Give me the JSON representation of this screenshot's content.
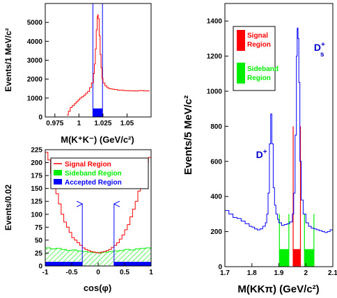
{
  "colors": {
    "signal": "#ff0000",
    "sideband": "#00ee00",
    "accepted": "#0000ff",
    "axis": "#000000",
    "dplus_label": "#0000cc"
  },
  "chart_data": [
    {
      "id": "mkk",
      "type": "line",
      "title": "",
      "xlabel": "M(K⁺K⁻) (GeV/c²)",
      "ylabel": "Events/1 MeV/c²",
      "xlim": [
        0.965,
        1.075
      ],
      "ylim": [
        0,
        6000
      ],
      "xticks": [
        0.975,
        1.0,
        1.025,
        1.05
      ],
      "xtick_labels": [
        "0.975",
        "1",
        "1.025",
        "1.05"
      ],
      "yticks": [
        0,
        1000,
        2000,
        3000,
        4000,
        5000
      ],
      "ytick_labels": [
        "0",
        "1000",
        "2000",
        "3000",
        "4000",
        "5000"
      ],
      "series": [
        {
          "color": "#ff0000",
          "x": [
            0.9875,
            0.989,
            0.991,
            0.993,
            0.995,
            0.997,
            0.999,
            1.001,
            1.003,
            1.005,
            1.007,
            1.009,
            1.011,
            1.013,
            1.015,
            1.016,
            1.017,
            1.018,
            1.019,
            1.0195,
            1.02,
            1.021,
            1.022,
            1.023,
            1.024,
            1.025,
            1.027,
            1.029,
            1.031,
            1.033,
            1.035,
            1.037,
            1.04,
            1.043,
            1.046,
            1.049,
            1.052,
            1.055,
            1.058,
            1.061,
            1.064,
            1.067,
            1.07,
            1.073
          ],
          "values": [
            100,
            300,
            500,
            600,
            700,
            800,
            900,
            1000,
            1070,
            1150,
            1250,
            1350,
            1550,
            1800,
            2300,
            2800,
            3600,
            4600,
            5300,
            5400,
            5200,
            4300,
            3300,
            2600,
            2050,
            1800,
            1650,
            1550,
            1500,
            1480,
            1470,
            1450,
            1420,
            1420,
            1400,
            1390,
            1380,
            1380,
            1370,
            1390,
            1400,
            1380,
            1380,
            1350
          ]
        }
      ],
      "accepted_region": {
        "x_range": [
          1.0145,
          1.0245
        ],
        "height": 450
      },
      "window_lines_x": [
        1.0145,
        1.0245
      ]
    },
    {
      "id": "cosphi",
      "type": "area",
      "title": "",
      "xlabel": "cos(φ)",
      "ylabel": "Events/0.02",
      "xlim": [
        -1,
        1
      ],
      "ylim": [
        0,
        225
      ],
      "xticks": [
        -1,
        -0.5,
        0,
        0.5,
        1
      ],
      "xtick_labels": [
        "-1",
        "-0.5",
        "0",
        "0.5",
        "1"
      ],
      "yticks": [
        0,
        25,
        50,
        75,
        100,
        125,
        150,
        175,
        200,
        225
      ],
      "ytick_labels": [
        "0",
        "25",
        "50",
        "75",
        "100",
        "125",
        "150",
        "175",
        "200",
        "225"
      ],
      "legend": {
        "position": "top-right",
        "entries": [
          {
            "label": "Signal Region",
            "color": "#ff0000",
            "style": "line"
          },
          {
            "label": "Sideband Region",
            "color": "#00ee00",
            "style": "box"
          },
          {
            "label": "Accepted Region",
            "color": "#0000ff",
            "style": "box"
          }
        ]
      },
      "series": [
        {
          "name": "Signal Region",
          "color": "#ff0000",
          "x": [
            -1.0,
            -0.95,
            -0.9,
            -0.85,
            -0.8,
            -0.75,
            -0.7,
            -0.65,
            -0.6,
            -0.55,
            -0.5,
            -0.45,
            -0.4,
            -0.35,
            -0.3,
            -0.25,
            -0.2,
            -0.15,
            -0.1,
            -0.05,
            0.0,
            0.05,
            0.1,
            0.15,
            0.2,
            0.25,
            0.3,
            0.35,
            0.4,
            0.45,
            0.5,
            0.55,
            0.6,
            0.65,
            0.7,
            0.75,
            0.8,
            0.85,
            0.9,
            0.95,
            1.0
          ],
          "values": [
            220,
            205,
            180,
            160,
            140,
            120,
            100,
            85,
            75,
            65,
            55,
            50,
            45,
            40,
            35,
            32,
            30,
            28,
            27,
            26,
            25,
            27,
            28,
            30,
            32,
            36,
            40,
            45,
            52,
            60,
            70,
            80,
            95,
            110,
            125,
            145,
            165,
            185,
            200,
            210,
            205
          ]
        },
        {
          "name": "Sideband Region",
          "color": "#00ee00",
          "x": [
            -1.0,
            -0.9,
            -0.8,
            -0.7,
            -0.6,
            -0.5,
            -0.4,
            -0.3,
            -0.2,
            -0.1,
            0.0,
            0.1,
            0.2,
            0.3,
            0.4,
            0.5,
            0.6,
            0.7,
            0.8,
            0.9,
            1.0
          ],
          "values": [
            35,
            33,
            34,
            32,
            30,
            31,
            29,
            28,
            27,
            26,
            26,
            27,
            28,
            29,
            30,
            32,
            31,
            33,
            34,
            35,
            34
          ]
        }
      ],
      "accepted_band": {
        "height": 8,
        "x_ranges": [
          [
            -1.0,
            -0.3
          ],
          [
            0.3,
            1.0
          ]
        ]
      },
      "cut_markers_x": [
        -0.3,
        0.3
      ],
      "cut_markers_y": [
        30,
        120
      ]
    },
    {
      "id": "mkkpi",
      "type": "line",
      "title": "",
      "xlabel": "M(KKπ) (GeV/c²)",
      "ylabel": "Events/5 MeV/c²",
      "xlim": [
        1.7,
        2.1
      ],
      "ylim": [
        0,
        1500
      ],
      "xticks": [
        1.7,
        1.8,
        1.9,
        2.0,
        2.1
      ],
      "xtick_labels": [
        "1.7",
        "1.8",
        "1.9",
        "2",
        "2.1"
      ],
      "yticks": [
        0,
        200,
        400,
        600,
        800,
        1000,
        1200,
        1400
      ],
      "ytick_labels": [
        "0",
        "200",
        "400",
        "600",
        "800",
        "1000",
        "1200",
        "1400"
      ],
      "legend": {
        "position": "top-left",
        "entries": [
          {
            "label_lines": [
              "Signal",
              "Region"
            ],
            "color": "#ff0000"
          },
          {
            "label_lines": [
              "Sideband",
              "Region"
            ],
            "color": "#00ee00"
          }
        ]
      },
      "annotations": [
        {
          "text": "D",
          "sup": "+",
          "sub": "",
          "x": 1.815,
          "y": 620
        },
        {
          "text": "D",
          "sup": "+",
          "sub": "s",
          "x": 2.03,
          "y": 1230
        }
      ],
      "series": [
        {
          "color": "#0000ff",
          "x": [
            1.7,
            1.715,
            1.73,
            1.745,
            1.76,
            1.775,
            1.79,
            1.8,
            1.81,
            1.82,
            1.83,
            1.84,
            1.85,
            1.855,
            1.86,
            1.865,
            1.8695,
            1.874,
            1.879,
            1.884,
            1.889,
            1.895,
            1.9,
            1.91,
            1.92,
            1.93,
            1.94,
            1.95,
            1.955,
            1.96,
            1.965,
            1.968,
            1.9685,
            1.971,
            1.974,
            1.978,
            1.983,
            1.99,
            2.0,
            2.01,
            2.02,
            2.03,
            2.04,
            2.05,
            2.06,
            2.07,
            2.08,
            2.09,
            2.1
          ],
          "values": [
            320,
            300,
            280,
            275,
            260,
            245,
            230,
            225,
            215,
            210,
            215,
            230,
            250,
            300,
            420,
            700,
            870,
            700,
            450,
            350,
            300,
            270,
            250,
            235,
            240,
            245,
            255,
            300,
            420,
            750,
            1200,
            1350,
            1360,
            1300,
            1050,
            600,
            380,
            300,
            250,
            230,
            220,
            215,
            210,
            205,
            200,
            195,
            200,
            210,
            230
          ]
        }
      ],
      "sideband_bars": [
        {
          "x_range": [
            1.902,
            1.937
          ],
          "height": 100
        },
        {
          "x_range": [
            1.995,
            2.03
          ],
          "height": 100
        }
      ],
      "signal_bar": {
        "x_range": [
          1.953,
          1.98
        ],
        "height": 100
      },
      "sideband_lines_x": [
        1.902,
        1.937,
        1.995,
        2.03
      ],
      "sideband_lines_y": 300,
      "signal_lines_x": [
        1.953,
        1.98
      ],
      "signal_lines_y": 800
    }
  ]
}
